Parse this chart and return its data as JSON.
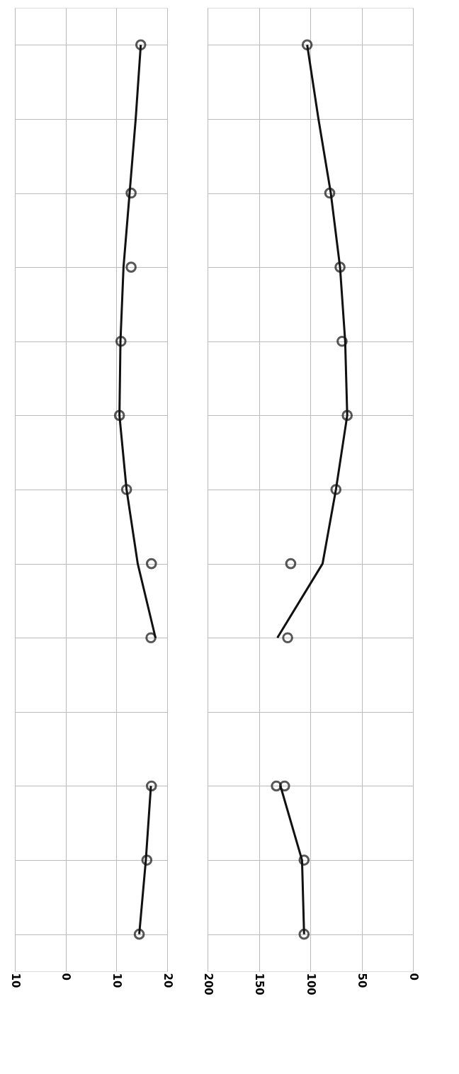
{
  "chart_data": [
    {
      "type": "scatter",
      "orientation": "horizontal",
      "categories": [
        null,
        null,
        null,
        null,
        null,
        null,
        null,
        null,
        null,
        null,
        null,
        null,
        null
      ],
      "xlim": [
        -10,
        20
      ],
      "xticks": [
        {
          "value": -10,
          "label": "10"
        },
        0,
        10,
        20
      ],
      "tick_labels": "x",
      "grid": true,
      "line_style": "solid",
      "series": [
        {
          "marker": "circle",
          "color": "#111111",
          "values": [
            14.8,
            null,
            12.9,
            12.9,
            10.9,
            10.6,
            12.0,
            16.9,
            16.8,
            null,
            16.9,
            16.0,
            14.5
          ]
        },
        {
          "type": "line",
          "marker": "none",
          "color": "#111111",
          "values": [
            14.8,
            13.8,
            12.6,
            11.4,
            10.8,
            10.6,
            12.0,
            14.2,
            17.7,
            null,
            null,
            null,
            null
          ]
        },
        {
          "type": "line",
          "marker": "none",
          "color": "#111111",
          "values": [
            null,
            null,
            null,
            null,
            null,
            null,
            null,
            null,
            null,
            null,
            16.8,
            15.8,
            14.5
          ]
        }
      ]
    },
    {
      "type": "scatter",
      "orientation": "horizontal",
      "categories": [
        null,
        null,
        null,
        null,
        null,
        null,
        null,
        null,
        null,
        null,
        null,
        null,
        null
      ],
      "xlim": [
        200,
        0
      ],
      "xticks": [
        200,
        150,
        100,
        50,
        0
      ],
      "tick_labels": "x",
      "grid": true,
      "line_style": "solid",
      "series": [
        {
          "marker": "circle",
          "color": "#111111",
          "values": [
            103,
            null,
            81,
            71,
            69,
            64,
            75,
            119,
            122,
            null,
            133,
            106,
            106
          ]
        },
        {
          "marker": "circle",
          "color": "#111111",
          "values": [
            null,
            null,
            null,
            null,
            null,
            null,
            null,
            null,
            null,
            null,
            125,
            null,
            null
          ]
        },
        {
          "type": "line",
          "marker": "none",
          "color": "#111111",
          "values": [
            103,
            92,
            80,
            71,
            66,
            64,
            75,
            88,
            132,
            null,
            null,
            null,
            null
          ]
        },
        {
          "type": "line",
          "marker": "none",
          "color": "#111111",
          "values": [
            null,
            null,
            null,
            null,
            null,
            null,
            null,
            null,
            null,
            null,
            129,
            108,
            106
          ]
        }
      ]
    }
  ]
}
